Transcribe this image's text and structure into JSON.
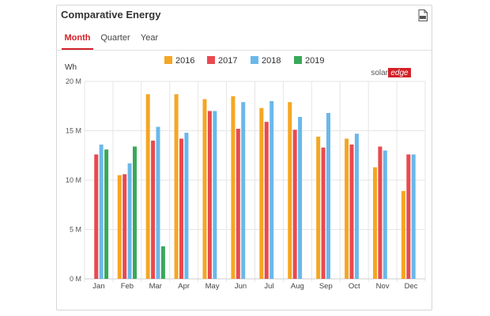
{
  "widget": {
    "title": "Comparative Energy",
    "export_icon": "csv-file-icon"
  },
  "tabs": [
    {
      "label": "Month",
      "active": true
    },
    {
      "label": "Quarter",
      "active": false
    },
    {
      "label": "Year",
      "active": false
    }
  ],
  "brand": {
    "logo_text_solar": "solar",
    "logo_text_edge": "edge",
    "logo_color": "#d32027"
  },
  "chart_data": {
    "type": "bar",
    "title": "",
    "ylabel": "Wh",
    "xlabel": "",
    "ylim": [
      0,
      20
    ],
    "yticks": [
      {
        "value": 0,
        "label": "0 M"
      },
      {
        "value": 5,
        "label": "5 M"
      },
      {
        "value": 10,
        "label": "10 M"
      },
      {
        "value": 15,
        "label": "15 M"
      },
      {
        "value": 20,
        "label": "20 M"
      }
    ],
    "categories": [
      "Jan",
      "Feb",
      "Mar",
      "Apr",
      "May",
      "Jun",
      "Jul",
      "Aug",
      "Sep",
      "Oct",
      "Nov",
      "Dec"
    ],
    "legend_position": "top-center",
    "series": [
      {
        "name": "2016",
        "color": "#f5a623",
        "values": [
          null,
          10.5,
          18.7,
          18.7,
          18.2,
          18.5,
          17.3,
          17.9,
          14.4,
          14.2,
          11.3,
          8.9
        ]
      },
      {
        "name": "2017",
        "color": "#e84a50",
        "values": [
          12.6,
          10.6,
          14.0,
          14.2,
          17.0,
          15.2,
          15.9,
          15.1,
          13.3,
          13.6,
          13.4,
          12.6
        ]
      },
      {
        "name": "2018",
        "color": "#6ab8ea",
        "values": [
          13.6,
          11.7,
          15.4,
          14.8,
          17.0,
          17.9,
          18.0,
          16.4,
          16.8,
          14.7,
          13.0,
          12.6
        ]
      },
      {
        "name": "2019",
        "color": "#3aa85a",
        "values": [
          13.1,
          13.4,
          3.3,
          null,
          null,
          null,
          null,
          null,
          null,
          null,
          null,
          null
        ]
      }
    ]
  }
}
